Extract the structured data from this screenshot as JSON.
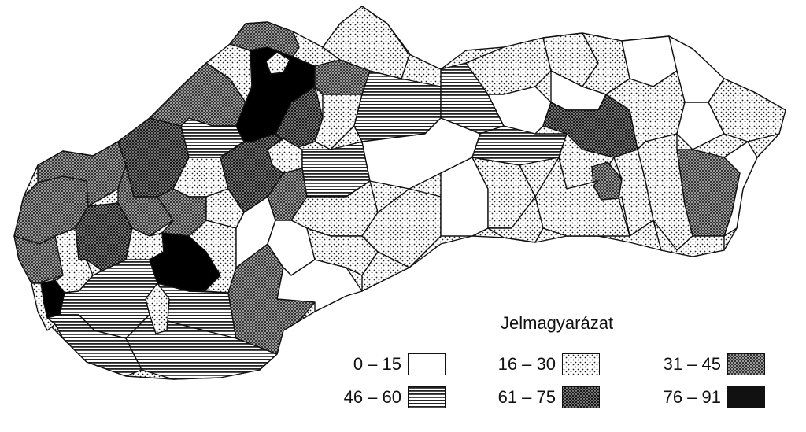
{
  "legend": {
    "title": "Jelmagyarázat",
    "items": [
      {
        "label": "0 – 15",
        "pattern": "white"
      },
      {
        "label": "16 – 30",
        "pattern": "dots"
      },
      {
        "label": "31 – 45",
        "pattern": "crosshatch"
      },
      {
        "label": "46 – 60",
        "pattern": "hlines"
      },
      {
        "label": "61 – 75",
        "pattern": "densedots"
      },
      {
        "label": "76 – 91",
        "pattern": "black"
      }
    ]
  },
  "colors": {
    "ink": "#111111",
    "paper": "#ffffff"
  }
}
